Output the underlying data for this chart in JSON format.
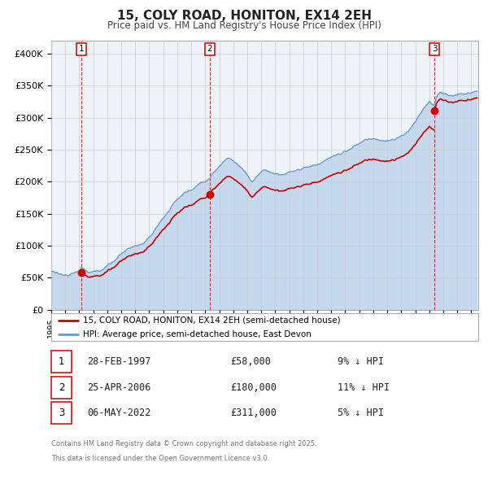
{
  "title": "15, COLY ROAD, HONITON, EX14 2EH",
  "subtitle": "Price paid vs. HM Land Registry's House Price Index (HPI)",
  "legend_property": "15, COLY ROAD, HONITON, EX14 2EH (semi-detached house)",
  "legend_hpi": "HPI: Average price, semi-detached house, East Devon",
  "footnote1": "Contains HM Land Registry data © Crown copyright and database right 2025.",
  "footnote2": "This data is licensed under the Open Government Licence v3.0.",
  "transactions": [
    {
      "num": 1,
      "date": "28-FEB-1997",
      "price": 58000,
      "hpi_pct": "9% ↓ HPI",
      "date_dec": 1997.16
    },
    {
      "num": 2,
      "date": "25-APR-2006",
      "price": 180000,
      "hpi_pct": "11% ↓ HPI",
      "date_dec": 2006.32
    },
    {
      "num": 3,
      "date": "06-MAY-2022",
      "price": 311000,
      "hpi_pct": "5% ↓ HPI",
      "date_dec": 2022.37
    }
  ],
  "hpi_keypoints": [
    [
      1995.0,
      60000
    ],
    [
      1995.5,
      58000
    ],
    [
      1996.0,
      56000
    ],
    [
      1996.5,
      55000
    ],
    [
      1997.0,
      56000
    ],
    [
      1997.16,
      63736
    ],
    [
      1997.5,
      60000
    ],
    [
      1998.0,
      62000
    ],
    [
      1998.5,
      65000
    ],
    [
      1999.0,
      70000
    ],
    [
      1999.5,
      76000
    ],
    [
      2000.0,
      83000
    ],
    [
      2000.5,
      90000
    ],
    [
      2001.0,
      95000
    ],
    [
      2001.5,
      100000
    ],
    [
      2002.0,
      110000
    ],
    [
      2002.5,
      125000
    ],
    [
      2003.0,
      140000
    ],
    [
      2003.5,
      155000
    ],
    [
      2004.0,
      170000
    ],
    [
      2004.5,
      180000
    ],
    [
      2005.0,
      185000
    ],
    [
      2005.5,
      192000
    ],
    [
      2006.0,
      198000
    ],
    [
      2006.32,
      202247
    ],
    [
      2006.5,
      208000
    ],
    [
      2007.0,
      218000
    ],
    [
      2007.5,
      228000
    ],
    [
      2007.8,
      232000
    ],
    [
      2008.0,
      228000
    ],
    [
      2008.5,
      218000
    ],
    [
      2009.0,
      205000
    ],
    [
      2009.3,
      195000
    ],
    [
      2009.5,
      198000
    ],
    [
      2010.0,
      210000
    ],
    [
      2010.5,
      212000
    ],
    [
      2011.0,
      208000
    ],
    [
      2011.5,
      210000
    ],
    [
      2012.0,
      212000
    ],
    [
      2012.5,
      215000
    ],
    [
      2013.0,
      218000
    ],
    [
      2013.5,
      222000
    ],
    [
      2014.0,
      228000
    ],
    [
      2014.5,
      235000
    ],
    [
      2015.0,
      240000
    ],
    [
      2015.5,
      245000
    ],
    [
      2016.0,
      250000
    ],
    [
      2016.5,
      255000
    ],
    [
      2017.0,
      260000
    ],
    [
      2017.5,
      265000
    ],
    [
      2018.0,
      268000
    ],
    [
      2018.5,
      270000
    ],
    [
      2019.0,
      272000
    ],
    [
      2019.5,
      275000
    ],
    [
      2020.0,
      278000
    ],
    [
      2020.5,
      285000
    ],
    [
      2021.0,
      298000
    ],
    [
      2021.5,
      315000
    ],
    [
      2022.0,
      332000
    ],
    [
      2022.37,
      327368
    ],
    [
      2022.5,
      340000
    ],
    [
      2022.8,
      348000
    ],
    [
      2023.0,
      345000
    ],
    [
      2023.5,
      342000
    ],
    [
      2024.0,
      345000
    ],
    [
      2024.5,
      348000
    ],
    [
      2025.0,
      352000
    ],
    [
      2025.4,
      355000
    ]
  ],
  "property_color": "#cc0000",
  "hpi_color": "#6699cc",
  "hpi_fill_color": "#c5d8ee",
  "ylim": [
    0,
    420000
  ],
  "yticks": [
    0,
    50000,
    100000,
    150000,
    200000,
    250000,
    300000,
    350000,
    400000
  ],
  "xlim_start": 1995.0,
  "xlim_end": 2025.5,
  "grid_color": "#cccccc",
  "plot_bg_color": "#eef3f8"
}
